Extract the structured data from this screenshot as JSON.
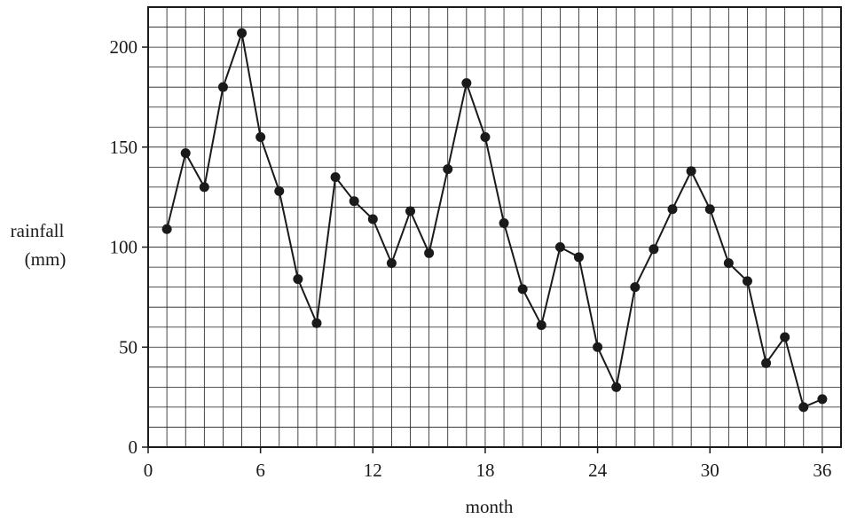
{
  "chart_data": {
    "type": "line",
    "title": "",
    "xlabel": "month",
    "ylabel_lines": [
      "rainfall",
      "(mm)"
    ],
    "xlim": [
      0,
      37
    ],
    "ylim": [
      0,
      220
    ],
    "x_ticks": [
      0,
      6,
      12,
      18,
      24,
      30,
      36
    ],
    "y_ticks": [
      0,
      50,
      100,
      150,
      200
    ],
    "x_minor_step": 1,
    "y_minor_step": 10,
    "grid": true,
    "marker": "filled-circle",
    "series": [
      {
        "x": [
          1,
          2,
          3,
          4,
          5,
          6,
          7,
          8,
          9,
          10,
          11,
          12,
          13,
          14,
          15,
          16,
          17,
          18,
          19,
          20,
          21,
          22,
          23,
          24,
          25,
          26,
          27,
          28,
          29,
          30,
          31,
          32,
          33,
          34,
          35,
          36
        ],
        "values": [
          109,
          147,
          130,
          180,
          207,
          155,
          128,
          84,
          62,
          135,
          123,
          114,
          92,
          118,
          97,
          139,
          182,
          155,
          112,
          79,
          61,
          100,
          95,
          50,
          30,
          80,
          99,
          119,
          138,
          119,
          92,
          83,
          42,
          55,
          20,
          24
        ]
      }
    ]
  }
}
